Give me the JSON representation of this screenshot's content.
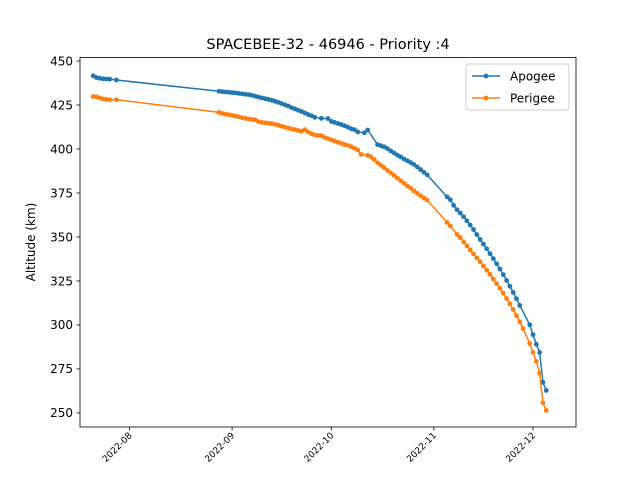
{
  "chart_data": {
    "type": "line",
    "title": "SPACEBEE-32 - 46946 - Priority :4",
    "xlabel": "",
    "ylabel": "Altitude (km)",
    "xlim": [
      "2022-07-17",
      "2022-12-14"
    ],
    "ylim": [
      242,
      452
    ],
    "yticks": [
      250,
      275,
      300,
      325,
      350,
      375,
      400,
      425,
      450
    ],
    "xticks": [
      "2022-08-01",
      "2022-09-01",
      "2022-10-01",
      "2022-11-01",
      "2022-12-01"
    ],
    "xtick_labels": [
      "2022-08",
      "2022-09",
      "2022-10",
      "2022-11",
      "2022-12"
    ],
    "legend_position": "top-right",
    "series": [
      {
        "name": "Apogee",
        "color": "#1f77b4",
        "points": [
          [
            "2022-07-21",
            441.6
          ],
          [
            "2022-07-22",
            440.6
          ],
          [
            "2022-07-23",
            440.2
          ],
          [
            "2022-07-24",
            439.9
          ],
          [
            "2022-07-25",
            439.8
          ],
          [
            "2022-07-26",
            439.7
          ],
          [
            "2022-07-28",
            439.2
          ],
          [
            "2022-08-28",
            432.8
          ],
          [
            "2022-08-29",
            432.6
          ],
          [
            "2022-08-30",
            432.4
          ],
          [
            "2022-08-31",
            432.3
          ],
          [
            "2022-09-01",
            432.0
          ],
          [
            "2022-09-02",
            431.9
          ],
          [
            "2022-09-03",
            431.6
          ],
          [
            "2022-09-04",
            431.4
          ],
          [
            "2022-09-05",
            431.1
          ],
          [
            "2022-09-06",
            430.9
          ],
          [
            "2022-09-07",
            430.5
          ],
          [
            "2022-09-08",
            430.0
          ],
          [
            "2022-09-09",
            429.5
          ],
          [
            "2022-09-10",
            429.0
          ],
          [
            "2022-09-11",
            428.6
          ],
          [
            "2022-09-12",
            428.2
          ],
          [
            "2022-09-13",
            427.7
          ],
          [
            "2022-09-14",
            427.1
          ],
          [
            "2022-09-15",
            426.5
          ],
          [
            "2022-09-16",
            425.8
          ],
          [
            "2022-09-17",
            425.1
          ],
          [
            "2022-09-18",
            424.4
          ],
          [
            "2022-09-19",
            423.5
          ],
          [
            "2022-09-20",
            422.8
          ],
          [
            "2022-09-21",
            422.0
          ],
          [
            "2022-09-22",
            421.3
          ],
          [
            "2022-09-23",
            420.5
          ],
          [
            "2022-09-24",
            419.6
          ],
          [
            "2022-09-25",
            418.9
          ],
          [
            "2022-09-26",
            418.0
          ],
          [
            "2022-09-28",
            417.4
          ],
          [
            "2022-09-30",
            417.3
          ],
          [
            "2022-10-01",
            415.7
          ],
          [
            "2022-10-02",
            415.1
          ],
          [
            "2022-10-03",
            414.5
          ],
          [
            "2022-10-04",
            413.9
          ],
          [
            "2022-10-05",
            413.2
          ],
          [
            "2022-10-06",
            412.4
          ],
          [
            "2022-10-07",
            411.5
          ],
          [
            "2022-10-08",
            411.0
          ],
          [
            "2022-10-09",
            409.7
          ],
          [
            "2022-10-11",
            409.2
          ],
          [
            "2022-10-12",
            410.8
          ],
          [
            "2022-10-15",
            402.5
          ],
          [
            "2022-10-16",
            401.9
          ],
          [
            "2022-10-17",
            401.2
          ],
          [
            "2022-10-18",
            400.2
          ],
          [
            "2022-10-19",
            398.9
          ],
          [
            "2022-10-20",
            397.7
          ],
          [
            "2022-10-21",
            396.5
          ],
          [
            "2022-10-22",
            395.5
          ],
          [
            "2022-10-23",
            394.3
          ],
          [
            "2022-10-24",
            393.3
          ],
          [
            "2022-10-25",
            392.3
          ],
          [
            "2022-10-26",
            391.2
          ],
          [
            "2022-10-27",
            389.8
          ],
          [
            "2022-10-28",
            388.3
          ],
          [
            "2022-10-29",
            386.8
          ],
          [
            "2022-10-30",
            385.3
          ],
          [
            "2022-11-05",
            372.8
          ],
          [
            "2022-11-06",
            371.2
          ],
          [
            "2022-11-07",
            368.0
          ],
          [
            "2022-11-08",
            365.5
          ],
          [
            "2022-11-09",
            363.6
          ],
          [
            "2022-11-10",
            361.5
          ],
          [
            "2022-11-11",
            359.2
          ],
          [
            "2022-11-12",
            356.8
          ],
          [
            "2022-11-13",
            354.2
          ],
          [
            "2022-11-14",
            351.4
          ],
          [
            "2022-11-15",
            348.6
          ],
          [
            "2022-11-16",
            346.0
          ],
          [
            "2022-11-17",
            343.3
          ],
          [
            "2022-11-18",
            340.5
          ],
          [
            "2022-11-19",
            337.7
          ],
          [
            "2022-11-20",
            334.8
          ],
          [
            "2022-11-21",
            331.8
          ],
          [
            "2022-11-22",
            328.6
          ],
          [
            "2022-11-23",
            325.3
          ],
          [
            "2022-11-24",
            322.0
          ],
          [
            "2022-11-25",
            318.5
          ],
          [
            "2022-11-26",
            314.9
          ],
          [
            "2022-11-27",
            311.1
          ],
          [
            "2022-11-30",
            300.1
          ],
          [
            "2022-12-01",
            294.5
          ],
          [
            "2022-12-02",
            289.0
          ],
          [
            "2022-12-03",
            284.4
          ],
          [
            "2022-12-04",
            267.4
          ],
          [
            "2022-12-05",
            262.8
          ]
        ]
      },
      {
        "name": "Perigee",
        "color": "#ff7f0e",
        "points": [
          [
            "2022-07-21",
            429.8
          ],
          [
            "2022-07-22",
            429.7
          ],
          [
            "2022-07-23",
            429.0
          ],
          [
            "2022-07-24",
            428.4
          ],
          [
            "2022-07-25",
            428.1
          ],
          [
            "2022-07-26",
            428.0
          ],
          [
            "2022-07-28",
            428.0
          ],
          [
            "2022-08-28",
            420.8
          ],
          [
            "2022-08-29",
            420.2
          ],
          [
            "2022-08-30",
            419.8
          ],
          [
            "2022-08-31",
            419.5
          ],
          [
            "2022-09-01",
            419.1
          ],
          [
            "2022-09-02",
            418.7
          ],
          [
            "2022-09-03",
            418.3
          ],
          [
            "2022-09-04",
            417.8
          ],
          [
            "2022-09-05",
            417.4
          ],
          [
            "2022-09-06",
            417.0
          ],
          [
            "2022-09-07",
            416.8
          ],
          [
            "2022-09-08",
            416.6
          ],
          [
            "2022-09-09",
            415.5
          ],
          [
            "2022-09-10",
            415.1
          ],
          [
            "2022-09-11",
            414.9
          ],
          [
            "2022-09-12",
            414.7
          ],
          [
            "2022-09-13",
            414.4
          ],
          [
            "2022-09-14",
            414.0
          ],
          [
            "2022-09-15",
            413.5
          ],
          [
            "2022-09-16",
            412.9
          ],
          [
            "2022-09-17",
            412.4
          ],
          [
            "2022-09-18",
            411.9
          ],
          [
            "2022-09-19",
            411.4
          ],
          [
            "2022-09-20",
            411.0
          ],
          [
            "2022-09-21",
            410.5
          ],
          [
            "2022-09-22",
            410.1
          ],
          [
            "2022-09-23",
            411.0
          ],
          [
            "2022-09-24",
            409.6
          ],
          [
            "2022-09-25",
            408.7
          ],
          [
            "2022-09-26",
            407.9
          ],
          [
            "2022-09-27",
            407.7
          ],
          [
            "2022-09-28",
            407.6
          ],
          [
            "2022-09-29",
            406.5
          ],
          [
            "2022-09-30",
            405.9
          ],
          [
            "2022-10-01",
            405.2
          ],
          [
            "2022-10-02",
            404.5
          ],
          [
            "2022-10-03",
            403.8
          ],
          [
            "2022-10-04",
            403.2
          ],
          [
            "2022-10-05",
            402.6
          ],
          [
            "2022-10-06",
            402.0
          ],
          [
            "2022-10-07",
            401.3
          ],
          [
            "2022-10-08",
            400.4
          ],
          [
            "2022-10-09",
            399.4
          ],
          [
            "2022-10-10",
            396.9
          ],
          [
            "2022-10-12",
            396.4
          ],
          [
            "2022-10-13",
            395.5
          ],
          [
            "2022-10-14",
            394.0
          ],
          [
            "2022-10-15",
            392.2
          ],
          [
            "2022-10-16",
            390.8
          ],
          [
            "2022-10-17",
            389.4
          ],
          [
            "2022-10-18",
            387.8
          ],
          [
            "2022-10-19",
            386.4
          ],
          [
            "2022-10-20",
            385.0
          ],
          [
            "2022-10-21",
            383.4
          ],
          [
            "2022-10-22",
            381.9
          ],
          [
            "2022-10-23",
            380.5
          ],
          [
            "2022-10-24",
            379.0
          ],
          [
            "2022-10-25",
            377.7
          ],
          [
            "2022-10-26",
            376.2
          ],
          [
            "2022-10-27",
            374.8
          ],
          [
            "2022-10-28",
            373.5
          ],
          [
            "2022-10-29",
            372.1
          ],
          [
            "2022-10-30",
            370.9
          ],
          [
            "2022-11-05",
            358.3
          ],
          [
            "2022-11-06",
            356.3
          ],
          [
            "2022-11-08",
            351.4
          ],
          [
            "2022-11-09",
            349.6
          ],
          [
            "2022-11-10",
            347.2
          ],
          [
            "2022-11-11",
            345.0
          ],
          [
            "2022-11-12",
            342.6
          ],
          [
            "2022-11-13",
            340.4
          ],
          [
            "2022-11-14",
            338.1
          ],
          [
            "2022-11-15",
            335.9
          ],
          [
            "2022-11-16",
            333.5
          ],
          [
            "2022-11-17",
            331.1
          ],
          [
            "2022-11-18",
            328.7
          ],
          [
            "2022-11-19",
            326.1
          ],
          [
            "2022-11-20",
            323.5
          ],
          [
            "2022-11-21",
            320.8
          ],
          [
            "2022-11-22",
            318.0
          ],
          [
            "2022-11-23",
            315.0
          ],
          [
            "2022-11-24",
            312.0
          ],
          [
            "2022-11-25",
            308.8
          ],
          [
            "2022-11-26",
            305.3
          ],
          [
            "2022-11-27",
            301.7
          ],
          [
            "2022-11-28",
            297.9
          ],
          [
            "2022-11-30",
            289.5
          ],
          [
            "2022-12-01",
            284.4
          ],
          [
            "2022-12-02",
            279.3
          ],
          [
            "2022-12-03",
            272.6
          ],
          [
            "2022-12-04",
            255.8
          ],
          [
            "2022-12-05",
            251.4
          ]
        ]
      }
    ]
  }
}
